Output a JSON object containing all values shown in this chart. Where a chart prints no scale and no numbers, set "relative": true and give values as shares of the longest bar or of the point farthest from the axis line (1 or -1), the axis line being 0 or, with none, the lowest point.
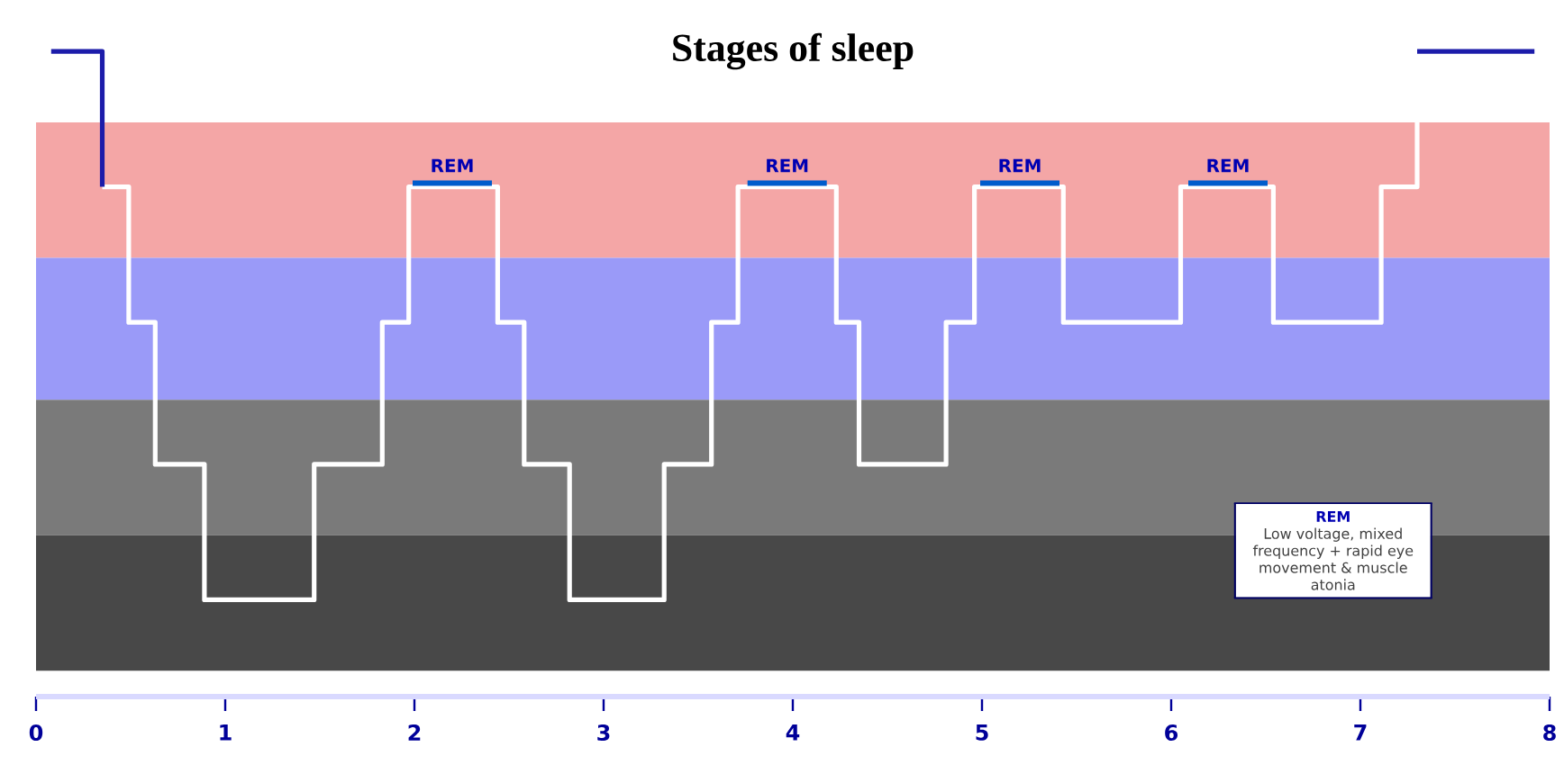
{
  "chart_data": {
    "type": "step",
    "title": "Stages of sleep",
    "relative": true,
    "xlim": [
      0,
      8
    ],
    "xticks": [
      0,
      1,
      2,
      3,
      4,
      5,
      6,
      7,
      8
    ],
    "grid": false,
    "marker": "none",
    "series": [
      {
        "color": "#ffffff",
        "x": [
          0.35,
          0.49,
          0.63,
          0.89,
          1.47,
          1.83,
          1.97,
          2.44,
          2.58,
          2.82,
          3.32,
          3.57,
          3.71,
          4.23,
          4.35,
          4.81,
          4.96,
          5.43,
          6.05,
          6.54,
          7.11,
          7.3
        ],
        "values": [
          0.79,
          0.58,
          0.36,
          0.15,
          0.36,
          0.58,
          0.79,
          0.58,
          0.36,
          0.15,
          0.36,
          0.58,
          0.79,
          0.58,
          0.36,
          0.58,
          0.79,
          0.58,
          0.79,
          0.58,
          0.79,
          1
        ]
      },
      {
        "color": "#1c1caa",
        "x": [
          0.08,
          0.35
        ],
        "values": [
          1,
          0.79
        ]
      },
      {
        "color": "#1c1caa",
        "x": [
          7.3,
          7.92
        ],
        "values": [
          1,
          1
        ]
      }
    ],
    "bands": [
      {
        "axis": "y",
        "from": 0.68,
        "to": 0.89,
        "color": "#f4a6a6"
      },
      {
        "axis": "y",
        "from": 0.46,
        "to": 0.68,
        "color": "#9a9af8"
      },
      {
        "axis": "y",
        "from": 0.25,
        "to": 0.46,
        "color": "#7a7a7a"
      },
      {
        "axis": "y",
        "from": 0.04,
        "to": 0.25,
        "color": "#484848"
      }
    ],
    "annotations": [
      {
        "text": "REM",
        "x": 2.2,
        "y": 0.79
      },
      {
        "text": "REM",
        "x": 3.97,
        "y": 0.79
      },
      {
        "text": "REM",
        "x": 5.2,
        "y": 0.79
      },
      {
        "text": "REM",
        "x": 6.3,
        "y": 0.79
      },
      "REM",
      "Low voltage, mixed frequency + rapid eye movement & muscle atonia"
    ]
  }
}
